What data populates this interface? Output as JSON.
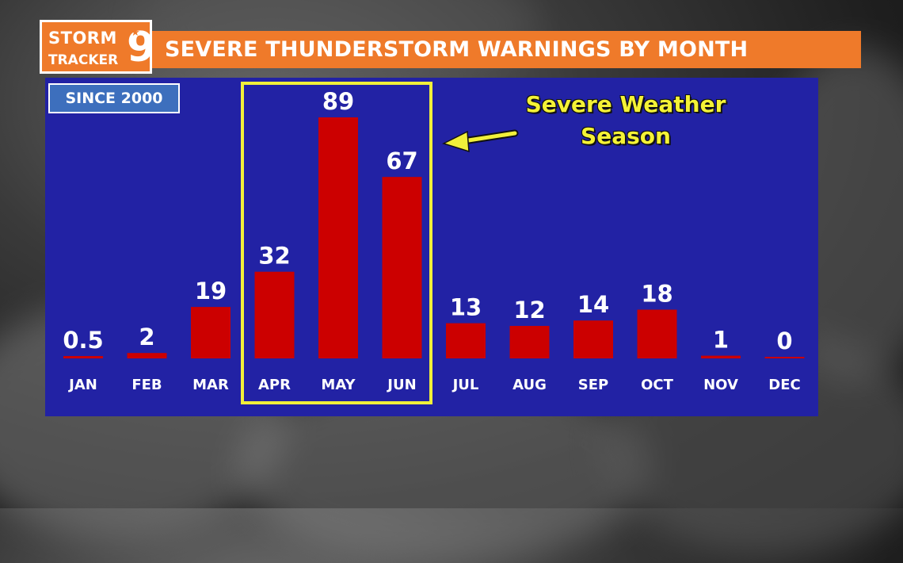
{
  "header": {
    "logo_line1": "STORM",
    "logo_line2": "TRACKER",
    "logo_number": "9",
    "title": "SEVERE THUNDERSTORM WARNINGS BY MONTH"
  },
  "badge": {
    "label": "SINCE 2000"
  },
  "annotation": {
    "text_line1": "Severe Weather",
    "text_line2": "Season"
  },
  "colors": {
    "bar": "#cc0000",
    "panel": "#2222a4",
    "accent_orange": "#ef7a2a",
    "highlight_yellow": "#f1f03a"
  },
  "chart_data": {
    "type": "bar",
    "title": "SEVERE THUNDERSTORM WARNINGS BY MONTH",
    "subtitle": "SINCE 2000",
    "categories": [
      "JAN",
      "FEB",
      "MAR",
      "APR",
      "MAY",
      "JUN",
      "JUL",
      "AUG",
      "SEP",
      "OCT",
      "NOV",
      "DEC"
    ],
    "values": [
      0.5,
      2,
      19,
      32,
      89,
      67,
      13,
      12,
      14,
      18,
      1,
      0
    ],
    "value_labels": [
      "0.5",
      "2",
      "19",
      "32",
      "89",
      "67",
      "13",
      "12",
      "14",
      "18",
      "1",
      "0"
    ],
    "ylim": [
      0,
      89
    ],
    "grid": false,
    "highlight": {
      "categories": [
        "APR",
        "MAY",
        "JUN"
      ],
      "label": "Severe Weather Season"
    }
  }
}
